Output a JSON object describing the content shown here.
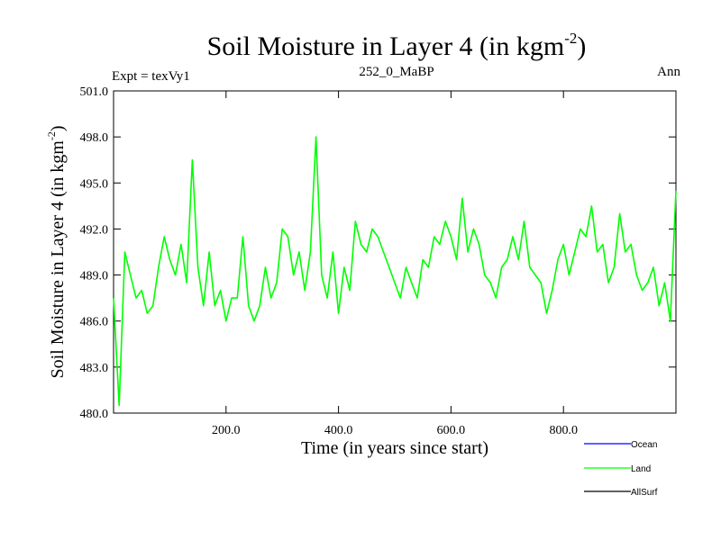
{
  "chart_data": {
    "type": "line",
    "title": "Soil Moisture in Layer 4 (in kgm",
    "title_superscript": "-2",
    "title_suffix": ")",
    "subtitle_left": "Expt = texVy1",
    "subtitle_center": "252_0_MaBP",
    "subtitle_right": "Ann",
    "xlabel": "Time (in years since start)",
    "ylabel": "Soil Moisture in Layer 4 (in kgm",
    "ylabel_superscript": "-2",
    "ylabel_suffix": ")",
    "xlim": [
      0,
      1000
    ],
    "ylim": [
      480,
      501
    ],
    "x_ticks": [
      200,
      400,
      600,
      800
    ],
    "x_tick_labels": [
      "200.0",
      "400.0",
      "600.0",
      "800.0"
    ],
    "y_ticks": [
      480,
      483,
      486,
      489,
      492,
      495,
      498,
      501
    ],
    "y_tick_labels": [
      "480.0",
      "483.0",
      "486.0",
      "489.0",
      "492.0",
      "495.0",
      "498.0",
      "501.0"
    ],
    "legend": {
      "placement": "bottom-right",
      "entries": [
        {
          "name": "Ocean",
          "color": "#0000ff"
        },
        {
          "name": "Land",
          "color": "#00ff00"
        },
        {
          "name": "AllSurf",
          "color": "#000000"
        }
      ]
    },
    "series": [
      {
        "name": "Land",
        "color": "#00ff00",
        "x": [
          0,
          10,
          20,
          30,
          40,
          50,
          60,
          70,
          80,
          90,
          100,
          110,
          120,
          130,
          140,
          150,
          160,
          170,
          180,
          190,
          200,
          210,
          220,
          230,
          240,
          250,
          260,
          270,
          280,
          290,
          300,
          310,
          320,
          330,
          340,
          350,
          360,
          370,
          380,
          390,
          400,
          410,
          420,
          430,
          440,
          450,
          460,
          470,
          480,
          490,
          500,
          510,
          520,
          530,
          540,
          550,
          560,
          570,
          580,
          590,
          600,
          610,
          620,
          630,
          640,
          650,
          660,
          670,
          680,
          690,
          700,
          710,
          720,
          730,
          740,
          750,
          760,
          770,
          780,
          790,
          800,
          810,
          820,
          830,
          840,
          850,
          860,
          870,
          880,
          890,
          900,
          910,
          920,
          930,
          940,
          950,
          960,
          970,
          980,
          990,
          1000
        ],
        "values": [
          487.5,
          480.5,
          490.5,
          489.0,
          487.5,
          488.0,
          486.5,
          487.0,
          489.5,
          491.5,
          490.0,
          489.0,
          491.0,
          488.5,
          496.5,
          489.5,
          487.0,
          490.5,
          487.0,
          488.0,
          486.0,
          487.5,
          487.5,
          491.5,
          487.0,
          486.0,
          487.0,
          489.5,
          487.5,
          488.5,
          492.0,
          491.5,
          489.0,
          490.5,
          488.0,
          490.5,
          498.0,
          489.0,
          487.5,
          490.5,
          486.5,
          489.5,
          488.0,
          492.5,
          491.0,
          490.5,
          492.0,
          491.5,
          490.5,
          489.5,
          488.5,
          487.5,
          489.5,
          488.5,
          487.5,
          490.0,
          489.5,
          491.5,
          491.0,
          492.5,
          491.5,
          490.0,
          494.0,
          490.5,
          492.0,
          491.0,
          489.0,
          488.5,
          487.5,
          489.5,
          490.0,
          491.5,
          490.0,
          492.5,
          489.5,
          489.0,
          488.5,
          486.5,
          488.0,
          490.0,
          491.0,
          489.0,
          490.5,
          492.0,
          491.5,
          493.5,
          490.5,
          491.0,
          488.5,
          489.5,
          493.0,
          490.5,
          491.0,
          489.0,
          488.0,
          488.5,
          489.5,
          487.0,
          488.5,
          486.0,
          494.5
        ]
      }
    ]
  }
}
